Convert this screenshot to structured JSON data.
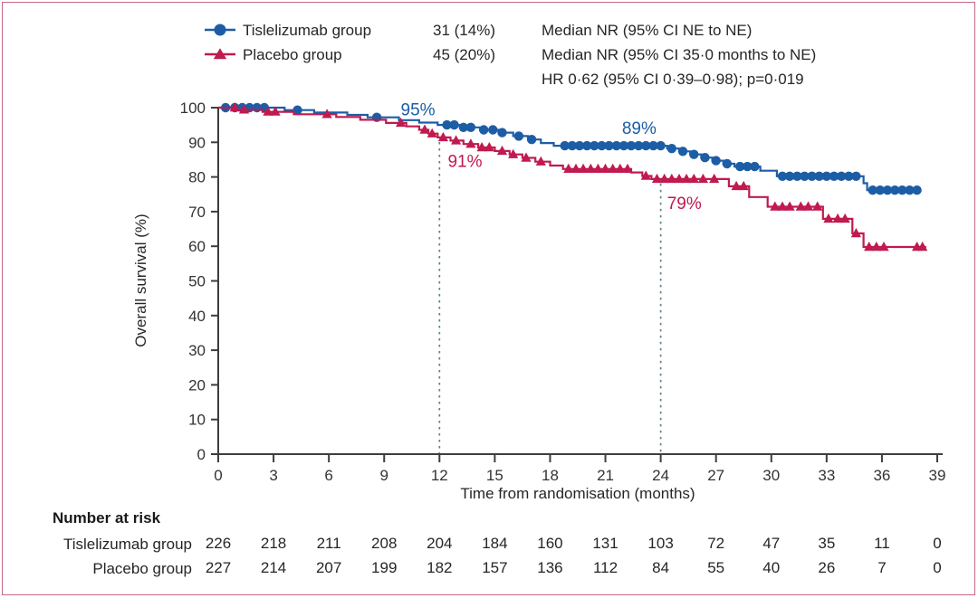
{
  "legend": {
    "rows": [
      {
        "label": "Tislelizumab group",
        "events": "31 (14%)",
        "stat": "Median NR (95% CI NE to NE)"
      },
      {
        "label": "Placebo group",
        "events": "45 (20%)",
        "stat": "Median NR (95% CI 35·0 months to NE)"
      }
    ],
    "footer_stat": "HR 0·62 (95% CI 0·39–0·98); p=0·019"
  },
  "chart_data": {
    "type": "line",
    "subtype": "kaplan-meier-step",
    "title": "",
    "xlabel": "Time from randomisation (months)",
    "ylabel": "Overall survival (%)",
    "xlim": [
      0,
      39
    ],
    "ylim": [
      0,
      100
    ],
    "xticks": [
      0,
      3,
      6,
      9,
      12,
      15,
      18,
      21,
      24,
      27,
      30,
      33,
      36,
      39
    ],
    "yticks": [
      0,
      10,
      20,
      30,
      40,
      50,
      60,
      70,
      80,
      90,
      100
    ],
    "grid": false,
    "legend_position": "top",
    "series": [
      {
        "name": "Tislelizumab group",
        "color": "#1d5da6",
        "marker": "circle",
        "steps": [
          [
            0,
            100
          ],
          [
            3.6,
            100
          ],
          [
            3.6,
            99.3
          ],
          [
            5.2,
            99.3
          ],
          [
            5.2,
            98.6
          ],
          [
            7.0,
            98.6
          ],
          [
            7.0,
            97.9
          ],
          [
            8.1,
            97.9
          ],
          [
            8.1,
            97.2
          ],
          [
            9.8,
            97.2
          ],
          [
            9.8,
            96.4
          ],
          [
            10.9,
            96.4
          ],
          [
            10.9,
            95.7
          ],
          [
            11.9,
            95.7
          ],
          [
            11.9,
            95.0
          ],
          [
            13.2,
            95.0
          ],
          [
            13.2,
            94.3
          ],
          [
            14.2,
            94.3
          ],
          [
            14.2,
            93.6
          ],
          [
            15.2,
            93.6
          ],
          [
            15.2,
            92.8
          ],
          [
            16.0,
            92.8
          ],
          [
            16.0,
            91.8
          ],
          [
            16.8,
            91.8
          ],
          [
            16.8,
            90.8
          ],
          [
            17.5,
            90.8
          ],
          [
            17.5,
            89.8
          ],
          [
            18.2,
            89.8
          ],
          [
            18.2,
            89.0
          ],
          [
            24.35,
            89.0
          ],
          [
            24.35,
            88.2
          ],
          [
            25.0,
            88.2
          ],
          [
            25.0,
            87.4
          ],
          [
            25.6,
            87.4
          ],
          [
            25.6,
            86.5
          ],
          [
            26.2,
            86.5
          ],
          [
            26.2,
            85.6
          ],
          [
            26.8,
            85.6
          ],
          [
            26.8,
            84.7
          ],
          [
            27.4,
            84.7
          ],
          [
            27.4,
            83.8
          ],
          [
            28.0,
            83.8
          ],
          [
            28.0,
            83.0
          ],
          [
            29.4,
            83.0
          ],
          [
            29.4,
            81.8
          ],
          [
            30.3,
            81.8
          ],
          [
            30.3,
            80.2
          ],
          [
            35.0,
            80.2
          ],
          [
            35.0,
            78.2
          ],
          [
            35.2,
            78.2
          ],
          [
            35.2,
            76.2
          ],
          [
            38.1,
            76.2
          ]
        ],
        "censor_months": [
          0.4,
          0.9,
          1.3,
          1.7,
          2.1,
          2.5,
          4.3,
          8.6,
          12.4,
          12.8,
          13.3,
          13.7,
          14.4,
          14.9,
          15.4,
          16.3,
          17.0,
          18.8,
          19.2,
          19.6,
          20.0,
          20.4,
          20.8,
          21.2,
          21.6,
          22.0,
          22.4,
          22.8,
          23.2,
          23.6,
          24.0,
          24.6,
          25.2,
          25.8,
          26.4,
          27.0,
          27.6,
          28.3,
          28.7,
          29.1,
          30.6,
          31.0,
          31.4,
          31.8,
          32.2,
          32.6,
          33.0,
          33.4,
          33.8,
          34.2,
          34.6,
          35.5,
          35.9,
          36.3,
          36.7,
          37.1,
          37.5,
          37.9
        ]
      },
      {
        "name": "Placebo group",
        "color": "#c01a4f",
        "marker": "triangle",
        "steps": [
          [
            0,
            100
          ],
          [
            1.0,
            100
          ],
          [
            1.0,
            99.4
          ],
          [
            2.4,
            99.4
          ],
          [
            2.4,
            98.8
          ],
          [
            4.1,
            98.8
          ],
          [
            4.1,
            98.1
          ],
          [
            6.4,
            98.1
          ],
          [
            6.4,
            97.3
          ],
          [
            7.7,
            97.3
          ],
          [
            7.7,
            96.5
          ],
          [
            9.1,
            96.5
          ],
          [
            9.1,
            95.6
          ],
          [
            10.2,
            95.6
          ],
          [
            10.2,
            94.6
          ],
          [
            10.9,
            94.6
          ],
          [
            10.9,
            93.6
          ],
          [
            11.4,
            93.6
          ],
          [
            11.4,
            92.5
          ],
          [
            11.9,
            92.5
          ],
          [
            11.9,
            91.4
          ],
          [
            12.6,
            91.4
          ],
          [
            12.6,
            90.5
          ],
          [
            13.3,
            90.5
          ],
          [
            13.3,
            89.5
          ],
          [
            14.1,
            89.5
          ],
          [
            14.1,
            88.5
          ],
          [
            15.0,
            88.5
          ],
          [
            15.0,
            87.5
          ],
          [
            15.8,
            87.5
          ],
          [
            15.8,
            86.5
          ],
          [
            16.5,
            86.5
          ],
          [
            16.5,
            85.5
          ],
          [
            17.2,
            85.5
          ],
          [
            17.2,
            84.4
          ],
          [
            18.0,
            84.4
          ],
          [
            18.0,
            83.3
          ],
          [
            18.7,
            83.3
          ],
          [
            18.7,
            82.3
          ],
          [
            22.4,
            82.3
          ],
          [
            22.4,
            81.3
          ],
          [
            23.0,
            81.3
          ],
          [
            23.0,
            80.3
          ],
          [
            23.5,
            80.3
          ],
          [
            23.5,
            79.4
          ],
          [
            27.7,
            79.4
          ],
          [
            27.7,
            77.3
          ],
          [
            28.8,
            77.3
          ],
          [
            28.8,
            74.2
          ],
          [
            29.8,
            74.2
          ],
          [
            29.8,
            71.4
          ],
          [
            32.8,
            71.4
          ],
          [
            32.8,
            67.9
          ],
          [
            34.4,
            67.9
          ],
          [
            34.4,
            63.7
          ],
          [
            35.0,
            63.7
          ],
          [
            35.0,
            59.8
          ],
          [
            38.4,
            59.8
          ]
        ],
        "censor_months": [
          0.9,
          1.4,
          2.7,
          3.1,
          5.9,
          9.9,
          11.2,
          11.6,
          12.2,
          12.9,
          13.7,
          14.3,
          14.7,
          15.4,
          16.0,
          16.7,
          17.5,
          19.0,
          19.4,
          19.8,
          20.2,
          20.6,
          21.0,
          21.4,
          21.8,
          22.2,
          23.2,
          23.8,
          24.2,
          24.6,
          25.0,
          25.4,
          25.8,
          26.3,
          26.9,
          28.1,
          28.5,
          30.2,
          30.6,
          31.0,
          31.6,
          32.0,
          32.5,
          33.1,
          33.6,
          34.0,
          34.6,
          35.3,
          35.7,
          36.1,
          37.9,
          38.2
        ]
      }
    ],
    "reference_lines": [
      {
        "x": 12,
        "top_pct": 91.4,
        "style": "dashed"
      },
      {
        "x": 24,
        "top_pct": 79.4,
        "style": "dashed"
      }
    ],
    "annotations": [
      {
        "text": "95%",
        "x": 9.9,
        "y": 97.8,
        "color": "#1d5da6",
        "series": "Tislelizumab group",
        "at_month": 12
      },
      {
        "text": "91%",
        "x": 12.45,
        "y": 82.9,
        "color": "#c01a4f",
        "series": "Placebo group",
        "at_month": 12
      },
      {
        "text": "89%",
        "x": 21.9,
        "y": 92.4,
        "color": "#1d5da6",
        "series": "Tislelizumab group",
        "at_month": 24
      },
      {
        "text": "79%",
        "x": 24.35,
        "y": 70.8,
        "color": "#c01a4f",
        "series": "Placebo group",
        "at_month": 24
      }
    ]
  },
  "number_at_risk": {
    "title": "Number at risk",
    "timepoints": [
      0,
      3,
      6,
      9,
      12,
      15,
      18,
      21,
      24,
      27,
      30,
      33,
      36,
      39
    ],
    "rows": [
      {
        "label": "Tislelizumab group",
        "values": [
          226,
          218,
          211,
          208,
          204,
          184,
          160,
          131,
          103,
          72,
          47,
          35,
          11,
          0
        ]
      },
      {
        "label": "Placebo group",
        "values": [
          227,
          214,
          207,
          199,
          182,
          157,
          136,
          112,
          84,
          55,
          40,
          26,
          7,
          0
        ]
      }
    ]
  },
  "style": {
    "accent_blue": "#1d5da6",
    "accent_red": "#c01a4f",
    "border_pink": "#c4688a",
    "axis_color": "#3d3d3d",
    "dash_color": "#64808a",
    "text_color": "#262626"
  }
}
